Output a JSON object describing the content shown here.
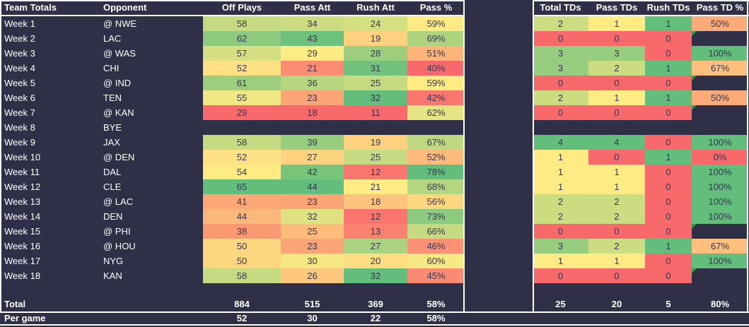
{
  "palette": {
    "background": "#2F2F48",
    "border": "#FFFFFF",
    "scale_min_color": "#F8696B",
    "scale_mid_color": "#FFEB84",
    "scale_max_color": "#63BE7B",
    "cell_text": "#353552",
    "light_text": "#FFFFFF",
    "flag_color": "#2F9E44"
  },
  "left_table": {
    "headers": [
      "Team Totals",
      "Opponent",
      "Off Plays",
      "Pass Att",
      "Rush Att",
      "Pass %"
    ],
    "rows": [
      {
        "week": "Week 1",
        "opponent": "@ NWE",
        "off_plays": 58,
        "pass_att": 34,
        "rush_att": 24,
        "pass_pct": "59%"
      },
      {
        "week": "Week 2",
        "opponent": "LAC",
        "off_plays": 62,
        "pass_att": 43,
        "rush_att": 19,
        "pass_pct": "69%"
      },
      {
        "week": "Week 3",
        "opponent": "@ WAS",
        "off_plays": 57,
        "pass_att": 29,
        "rush_att": 28,
        "pass_pct": "51%"
      },
      {
        "week": "Week 4",
        "opponent": "CHI",
        "off_plays": 52,
        "pass_att": 21,
        "rush_att": 31,
        "pass_pct": "40%"
      },
      {
        "week": "Week 5",
        "opponent": "@ IND",
        "off_plays": 61,
        "pass_att": 36,
        "rush_att": 25,
        "pass_pct": "59%"
      },
      {
        "week": "Week 6",
        "opponent": "TEN",
        "off_plays": 55,
        "pass_att": 23,
        "rush_att": 32,
        "pass_pct": "42%"
      },
      {
        "week": "Week 7",
        "opponent": "@ KAN",
        "off_plays": 29,
        "pass_att": 18,
        "rush_att": 11,
        "pass_pct": "62%"
      },
      {
        "week": "Week 8",
        "opponent": "BYE",
        "off_plays": null,
        "pass_att": null,
        "rush_att": null,
        "pass_pct": null
      },
      {
        "week": "Week 9",
        "opponent": "JAX",
        "off_plays": 58,
        "pass_att": 39,
        "rush_att": 19,
        "pass_pct": "67%"
      },
      {
        "week": "Week 10",
        "opponent": "@ DEN",
        "off_plays": 52,
        "pass_att": 27,
        "rush_att": 25,
        "pass_pct": "52%"
      },
      {
        "week": "Week 11",
        "opponent": "DAL",
        "off_plays": 54,
        "pass_att": 42,
        "rush_att": 12,
        "pass_pct": "78%"
      },
      {
        "week": "Week 12",
        "opponent": "CLE",
        "off_plays": 65,
        "pass_att": 44,
        "rush_att": 21,
        "pass_pct": "68%"
      },
      {
        "week": "Week 13",
        "opponent": "@ LAC",
        "off_plays": 41,
        "pass_att": 23,
        "rush_att": 18,
        "pass_pct": "56%"
      },
      {
        "week": "Week 14",
        "opponent": "DEN",
        "off_plays": 44,
        "pass_att": 32,
        "rush_att": 12,
        "pass_pct": "73%"
      },
      {
        "week": "Week 15",
        "opponent": "@ PHI",
        "off_plays": 38,
        "pass_att": 25,
        "rush_att": 13,
        "pass_pct": "66%"
      },
      {
        "week": "Week 16",
        "opponent": "@ HOU",
        "off_plays": 50,
        "pass_att": 23,
        "rush_att": 27,
        "pass_pct": "46%"
      },
      {
        "week": "Week 17",
        "opponent": "NYG",
        "off_plays": 50,
        "pass_att": 30,
        "rush_att": 20,
        "pass_pct": "60%"
      },
      {
        "week": "Week 18",
        "opponent": "KAN",
        "off_plays": 58,
        "pass_att": 26,
        "rush_att": 32,
        "pass_pct": "45%"
      }
    ],
    "total": {
      "label": "Total",
      "off_plays": 884,
      "pass_att": 515,
      "rush_att": 369,
      "pass_pct": "58%"
    },
    "per_game": {
      "label": "Per game",
      "off_plays": 52,
      "pass_att": 30,
      "rush_att": 22,
      "pass_pct": "58%"
    }
  },
  "right_table": {
    "headers": [
      "Total TDs",
      "Pass TDs",
      "Rush TDs",
      "Pass TD %"
    ],
    "rows": [
      {
        "total_tds": 2,
        "pass_tds": 1,
        "rush_tds": 1,
        "pass_td_pct": "50%"
      },
      {
        "total_tds": 0,
        "pass_tds": 0,
        "rush_tds": 0,
        "pass_td_pct": null,
        "flag": true
      },
      {
        "total_tds": 3,
        "pass_tds": 3,
        "rush_tds": 0,
        "pass_td_pct": "100%"
      },
      {
        "total_tds": 3,
        "pass_tds": 2,
        "rush_tds": 1,
        "pass_td_pct": "67%"
      },
      {
        "total_tds": 0,
        "pass_tds": 0,
        "rush_tds": 0,
        "pass_td_pct": null,
        "flag": true
      },
      {
        "total_tds": 2,
        "pass_tds": 1,
        "rush_tds": 1,
        "pass_td_pct": "50%"
      },
      {
        "total_tds": 0,
        "pass_tds": 0,
        "rush_tds": 0,
        "pass_td_pct": null,
        "flag": true
      },
      {
        "total_tds": null,
        "pass_tds": null,
        "rush_tds": null,
        "pass_td_pct": null
      },
      {
        "total_tds": 4,
        "pass_tds": 4,
        "rush_tds": 0,
        "pass_td_pct": "100%"
      },
      {
        "total_tds": 1,
        "pass_tds": 0,
        "rush_tds": 1,
        "pass_td_pct": "0%"
      },
      {
        "total_tds": 1,
        "pass_tds": 1,
        "rush_tds": 0,
        "pass_td_pct": "100%"
      },
      {
        "total_tds": 1,
        "pass_tds": 1,
        "rush_tds": 0,
        "pass_td_pct": "100%"
      },
      {
        "total_tds": 2,
        "pass_tds": 2,
        "rush_tds": 0,
        "pass_td_pct": "100%"
      },
      {
        "total_tds": 2,
        "pass_tds": 2,
        "rush_tds": 0,
        "pass_td_pct": "100%"
      },
      {
        "total_tds": 0,
        "pass_tds": 0,
        "rush_tds": 0,
        "pass_td_pct": null,
        "flag": true
      },
      {
        "total_tds": 3,
        "pass_tds": 2,
        "rush_tds": 1,
        "pass_td_pct": "67%"
      },
      {
        "total_tds": 1,
        "pass_tds": 1,
        "rush_tds": 0,
        "pass_td_pct": "100%"
      },
      {
        "total_tds": 0,
        "pass_tds": 0,
        "rush_tds": 0,
        "pass_td_pct": null,
        "flag": true
      }
    ],
    "total": {
      "total_tds": 25,
      "pass_tds": 20,
      "rush_tds": 5,
      "pass_td_pct": "80%"
    }
  }
}
